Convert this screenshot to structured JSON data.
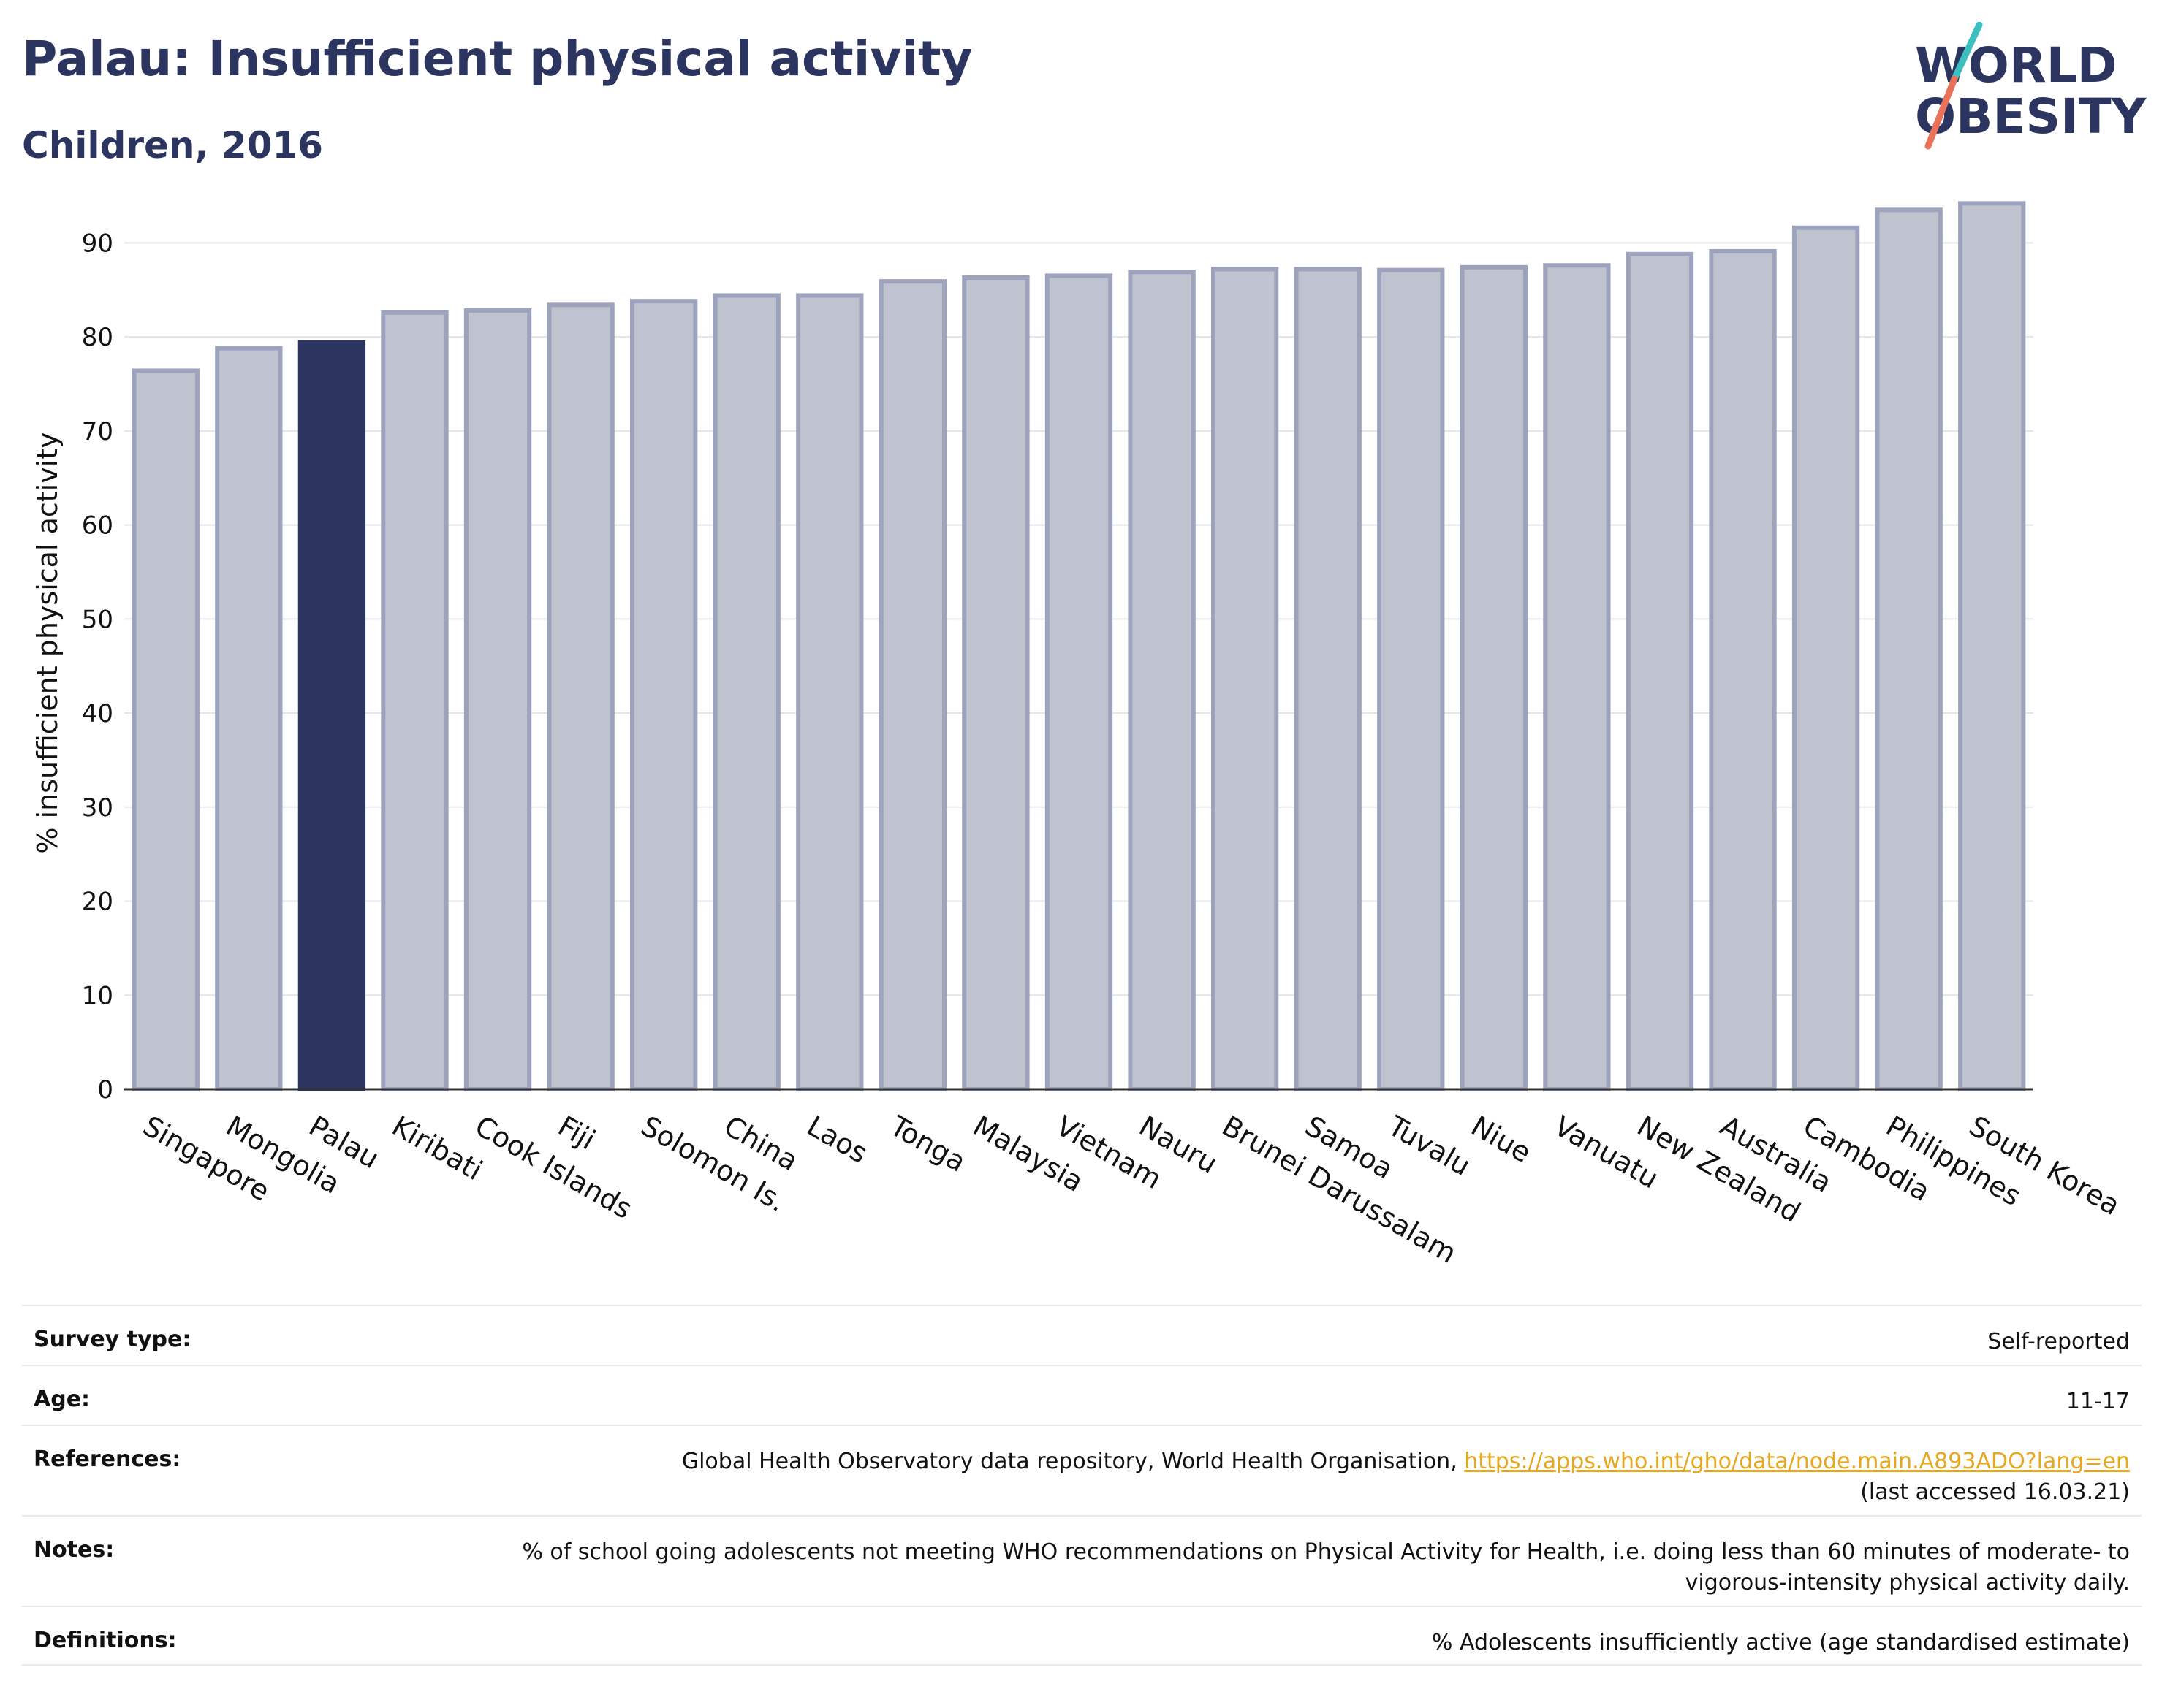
{
  "title": "Palau: Insufficient physical activity",
  "subtitle": "Children, 2016",
  "logo": {
    "line1": "WORLD",
    "line2": "OBESITY"
  },
  "colors": {
    "highlight": "#2b3560",
    "bar_fill": "#bfc2cf",
    "bar_stroke": "#9ea3bd",
    "title": "#2b3560",
    "slash_teal": "#3bbfbf",
    "slash_red": "#e8735a",
    "link": "#e6a820"
  },
  "chart_data": {
    "type": "bar",
    "title": "Palau: Insufficient physical activity",
    "subtitle": "Children, 2016",
    "ylabel": "% insufficient physical activity",
    "xlabel": "",
    "ylim": [
      0,
      95
    ],
    "yticks": [
      0,
      10,
      20,
      30,
      40,
      50,
      60,
      70,
      80,
      90
    ],
    "grid": true,
    "highlight": "Palau",
    "categories": [
      "Singapore",
      "Mongolia",
      "Palau",
      "Kiribati",
      "Cook Islands",
      "Fiji",
      "Solomon Is.",
      "China",
      "Laos",
      "Tonga",
      "Malaysia",
      "Vietnam",
      "Nauru",
      "Brunei Darussalam",
      "Samoa",
      "Tuvalu",
      "Niue",
      "Vanuatu",
      "New Zealand",
      "Australia",
      "Cambodia",
      "Philippines",
      "South Korea"
    ],
    "values": [
      76.4,
      78.8,
      79.4,
      82.6,
      82.8,
      83.4,
      83.8,
      84.4,
      84.4,
      85.9,
      86.3,
      86.5,
      86.9,
      87.2,
      87.2,
      87.1,
      87.4,
      87.6,
      88.8,
      89.1,
      91.6,
      93.5,
      94.2
    ]
  },
  "info_table": [
    {
      "label": "Survey type:",
      "value": "Self-reported",
      "link": "",
      "extra": ""
    },
    {
      "label": "Age:",
      "value": "11-17",
      "link": "",
      "extra": ""
    },
    {
      "label": "References:",
      "value": "Global Health Observatory data repository, World Health Organisation, ",
      "link": "https://apps.who.int/gho/data/node.main.A893ADO?lang=en",
      "extra": "(last accessed 16.03.21)"
    },
    {
      "label": "Notes:",
      "value": "% of school going adolescents not meeting WHO recommendations on Physical Activity for Health, i.e. doing less than 60 minutes of moderate- to vigorous-intensity physical activity daily.",
      "link": "",
      "extra": ""
    },
    {
      "label": "Definitions:",
      "value": "% Adolescents insufficiently active (age standardised estimate)",
      "link": "",
      "extra": ""
    }
  ]
}
